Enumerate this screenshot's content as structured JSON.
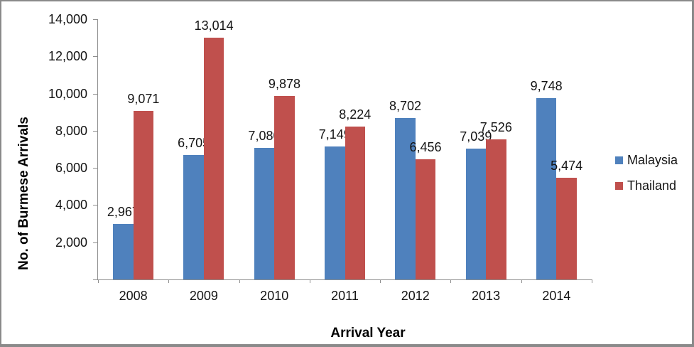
{
  "chart_data": {
    "type": "bar",
    "title": "",
    "xlabel": "Arrival Year",
    "ylabel": "No. of Burmese Arrivals",
    "categories": [
      "2008",
      "2009",
      "2010",
      "2011",
      "2012",
      "2013",
      "2014"
    ],
    "series": [
      {
        "name": "Malaysia",
        "color": "#4f81bd",
        "values": [
          2967,
          6705,
          7080,
          7149,
          8702,
          7039,
          9748
        ],
        "value_labels": [
          "2,967",
          "6,705",
          "7,080",
          "7,149",
          "8,702",
          "7,039",
          "9,748"
        ]
      },
      {
        "name": "Thailand",
        "color": "#c0504d",
        "values": [
          9071,
          13014,
          9878,
          8224,
          6456,
          7526,
          5474
        ],
        "value_labels": [
          "9,071",
          "13,014",
          "9,878",
          "8,224",
          "6,456",
          "7,526",
          "5,474"
        ]
      }
    ],
    "ylim": [
      0,
      14000
    ],
    "ytick_step": 2000,
    "ytick_labels": [
      "2,000",
      "4,000",
      "6,000",
      "8,000",
      "10,000",
      "12,000",
      "14,000"
    ],
    "data_labels_position": "outside-end",
    "grid": false,
    "legend_position": "right",
    "axis_color": "#8e8e8e",
    "bar_text_color": "#141414"
  }
}
